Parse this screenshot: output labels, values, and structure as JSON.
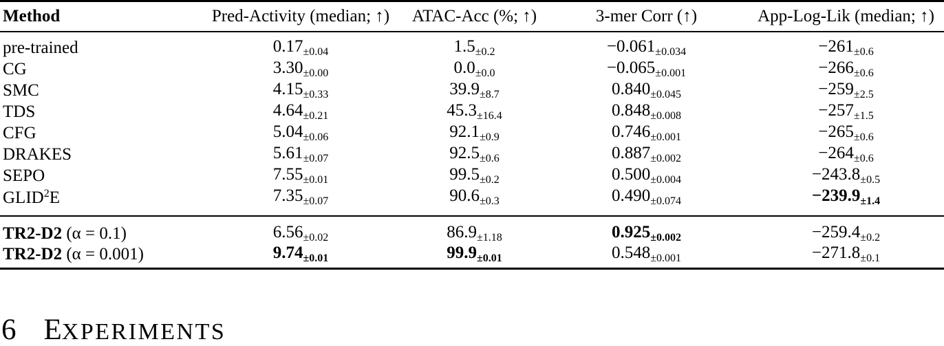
{
  "table": {
    "headers": [
      "Method",
      "Pred-Activity (median; ↑)",
      "ATAC-Acc (%; ↑)",
      "3-mer Corr (↑)",
      "App-Log-Lik (median; ↑)"
    ],
    "rows": [
      {
        "method": {
          "bold": "",
          "text": "pre-trained",
          "sup": "",
          "tail": ""
        },
        "values": [
          {
            "v": "0.17",
            "pm": "±0.04",
            "b": false
          },
          {
            "v": "1.5",
            "pm": "±0.2",
            "b": false
          },
          {
            "v": "−0.061",
            "pm": "±0.034",
            "b": false
          },
          {
            "v": "−261",
            "pm": "±0.6",
            "b": false
          }
        ]
      },
      {
        "method": {
          "bold": "",
          "text": "CG",
          "sup": "",
          "tail": ""
        },
        "values": [
          {
            "v": "3.30",
            "pm": "±0.00",
            "b": false
          },
          {
            "v": "0.0",
            "pm": "±0.0",
            "b": false
          },
          {
            "v": "−0.065",
            "pm": "±0.001",
            "b": false
          },
          {
            "v": "−266",
            "pm": "±0.6",
            "b": false
          }
        ]
      },
      {
        "method": {
          "bold": "",
          "text": "SMC",
          "sup": "",
          "tail": ""
        },
        "values": [
          {
            "v": "4.15",
            "pm": "±0.33",
            "b": false
          },
          {
            "v": "39.9",
            "pm": "±8.7",
            "b": false
          },
          {
            "v": "0.840",
            "pm": "±0.045",
            "b": false
          },
          {
            "v": "−259",
            "pm": "±2.5",
            "b": false
          }
        ]
      },
      {
        "method": {
          "bold": "",
          "text": "TDS",
          "sup": "",
          "tail": ""
        },
        "values": [
          {
            "v": "4.64",
            "pm": "±0.21",
            "b": false
          },
          {
            "v": "45.3",
            "pm": "±16.4",
            "b": false
          },
          {
            "v": "0.848",
            "pm": "±0.008",
            "b": false
          },
          {
            "v": "−257",
            "pm": "±1.5",
            "b": false
          }
        ]
      },
      {
        "method": {
          "bold": "",
          "text": "CFG",
          "sup": "",
          "tail": ""
        },
        "values": [
          {
            "v": "5.04",
            "pm": "±0.06",
            "b": false
          },
          {
            "v": "92.1",
            "pm": "±0.9",
            "b": false
          },
          {
            "v": "0.746",
            "pm": "±0.001",
            "b": false
          },
          {
            "v": "−265",
            "pm": "±0.6",
            "b": false
          }
        ]
      },
      {
        "method": {
          "bold": "",
          "text": "DRAKES",
          "sup": "",
          "tail": ""
        },
        "values": [
          {
            "v": "5.61",
            "pm": "±0.07",
            "b": false
          },
          {
            "v": "92.5",
            "pm": "±0.6",
            "b": false
          },
          {
            "v": "0.887",
            "pm": "±0.002",
            "b": false
          },
          {
            "v": "−264",
            "pm": "±0.6",
            "b": false
          }
        ]
      },
      {
        "method": {
          "bold": "",
          "text": "SEPO",
          "sup": "",
          "tail": ""
        },
        "values": [
          {
            "v": "7.55",
            "pm": "±0.01",
            "b": false
          },
          {
            "v": "99.5",
            "pm": "±0.2",
            "b": false
          },
          {
            "v": "0.500",
            "pm": "±0.004",
            "b": false
          },
          {
            "v": "−243.8",
            "pm": "±0.5",
            "b": false
          }
        ]
      },
      {
        "method": {
          "bold": "",
          "text": "GLID",
          "sup": "2",
          "tail": "E"
        },
        "values": [
          {
            "v": "7.35",
            "pm": "±0.07",
            "b": false
          },
          {
            "v": "90.6",
            "pm": "±0.3",
            "b": false
          },
          {
            "v": "0.490",
            "pm": "±0.074",
            "b": false
          },
          {
            "v": "−239.9",
            "pm": "±1.4",
            "b": true
          }
        ]
      },
      {
        "method": {
          "bold": "TR2-D2",
          "text": "",
          "sup": "",
          "tail": " (α = 0.1)"
        },
        "values": [
          {
            "v": "6.56",
            "pm": "±0.02",
            "b": false
          },
          {
            "v": "86.9",
            "pm": "±1.18",
            "b": false
          },
          {
            "v": "0.925",
            "pm": "±0.002",
            "b": true
          },
          {
            "v": "−259.4",
            "pm": "±0.2",
            "b": false
          }
        ]
      },
      {
        "method": {
          "bold": "TR2-D2",
          "text": "",
          "sup": "",
          "tail": " (α = 0.001)"
        },
        "values": [
          {
            "v": "9.74",
            "pm": "±0.01",
            "b": true
          },
          {
            "v": "99.9",
            "pm": "±0.01",
            "b": true
          },
          {
            "v": "0.548",
            "pm": "±0.001",
            "b": false
          },
          {
            "v": "−271.8",
            "pm": "±0.1",
            "b": false
          }
        ]
      }
    ],
    "group_break_after": 8
  },
  "section_heading": {
    "number": "6",
    "title_initial": "E",
    "title_rest": "XPERIMENTS"
  },
  "colors": {
    "text": "#000000",
    "rule": "#000000",
    "background": "#ffffff"
  }
}
